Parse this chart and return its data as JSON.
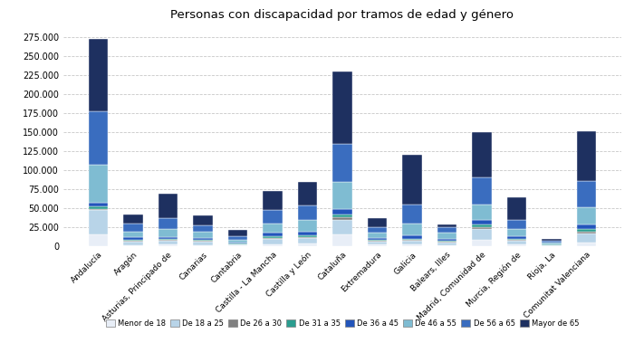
{
  "title": "Personas con discapacidad por tramos de edad y género",
  "categories": [
    "Andalucía",
    "Aragón",
    "Asturias, Principado de",
    "Canarias",
    "Cantabria",
    "Castilla - La Mancha",
    "Castilla y León",
    "Cataluña",
    "Extremadura",
    "Galicia",
    "Balears, Illes",
    "Madrid, Comunidad de",
    "Murcia, Región de",
    "Rioja, La",
    "Comunitat Valenciana"
  ],
  "age_groups": [
    "Menor de 18",
    "De 18 a 25",
    "De 26 a 30",
    "De 31 a 35",
    "De 36 a 45",
    "De 46 a 55",
    "De 56 a 65",
    "Mayor de 65"
  ],
  "colors": [
    "#e8eef7",
    "#b8d4e8",
    "#808080",
    "#2a9d8f",
    "#2255bb",
    "#7fbcd2",
    "#3a6dbf",
    "#1e3060"
  ],
  "data": {
    "Menor de 18": [
      15000,
      1500,
      2000,
      1500,
      800,
      2000,
      3500,
      15000,
      2000,
      2000,
      1500,
      8000,
      2000,
      500,
      5000
    ],
    "De 18 a 25": [
      32000,
      5000,
      5000,
      5000,
      1500,
      7000,
      7000,
      20000,
      4000,
      5000,
      3500,
      15000,
      5000,
      1000,
      12000
    ],
    "De 26 a 30": [
      2000,
      1000,
      1000,
      800,
      300,
      1500,
      1500,
      3000,
      800,
      1000,
      800,
      2000,
      1000,
      200,
      2000
    ],
    "De 31 a 35": [
      3000,
      1000,
      1000,
      1000,
      500,
      2000,
      2000,
      4000,
      1000,
      1500,
      1000,
      3000,
      1500,
      300,
      3000
    ],
    "De 36 a 45": [
      5000,
      3000,
      3000,
      2500,
      1500,
      5000,
      5000,
      7000,
      2500,
      5000,
      3000,
      7000,
      3000,
      800,
      7000
    ],
    "De 46 a 55": [
      50000,
      8000,
      10000,
      8000,
      4000,
      12000,
      15000,
      35000,
      7000,
      15000,
      8000,
      20000,
      10000,
      2000,
      22000
    ],
    "De 56 a 65": [
      70000,
      10000,
      15000,
      9000,
      5000,
      18000,
      20000,
      50000,
      8000,
      25000,
      7000,
      35000,
      12000,
      2000,
      35000
    ],
    "Mayor de 65": [
      95000,
      12000,
      32000,
      13000,
      8000,
      25000,
      30000,
      95000,
      12000,
      65000,
      4000,
      60000,
      30000,
      2500,
      65000
    ]
  },
  "ylim": [
    0,
    290000
  ],
  "yticks": [
    0,
    25000,
    50000,
    75000,
    100000,
    125000,
    150000,
    175000,
    200000,
    225000,
    250000,
    275000
  ],
  "background_color": "#ffffff",
  "grid_color": "#c8c8c8"
}
